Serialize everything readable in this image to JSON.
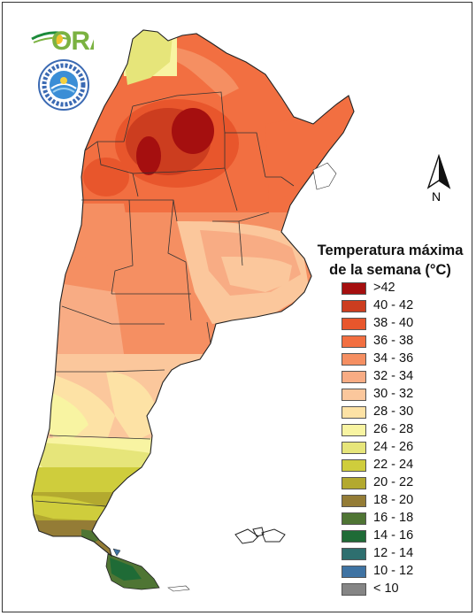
{
  "logo": {
    "text": "ORA",
    "name": "ORA logo"
  },
  "seal": {
    "name": "Servicio Meteorológico Nacional seal"
  },
  "north_arrow": {
    "letter": "N"
  },
  "legend": {
    "title_line1": "Temperatura máxima",
    "title_line2": "de la semana (°C)",
    "items": [
      {
        "label": ">42",
        "color": "#a50f0f"
      },
      {
        "label": "40 - 42",
        "color": "#cc3d1f"
      },
      {
        "label": "38 - 40",
        "color": "#e8562c"
      },
      {
        "label": "36 - 38",
        "color": "#f26f41"
      },
      {
        "label": "34 - 36",
        "color": "#f58f62"
      },
      {
        "label": "32 - 34",
        "color": "#f8ac84"
      },
      {
        "label": "30 - 32",
        "color": "#fbc79c"
      },
      {
        "label": "28 - 30",
        "color": "#fde2a5"
      },
      {
        "label": "26 - 28",
        "color": "#f8f4a2"
      },
      {
        "label": "24 - 26",
        "color": "#e6e57a"
      },
      {
        "label": "22 - 24",
        "color": "#cfcd3c"
      },
      {
        "label": "20 - 22",
        "color": "#b3a92f"
      },
      {
        "label": "18 - 20",
        "color": "#947c36"
      },
      {
        "label": "16 - 18",
        "color": "#4f7534"
      },
      {
        "label": "14 - 16",
        "color": "#1f6b36"
      },
      {
        "label": "12 - 14",
        "color": "#2e6f6f"
      },
      {
        "label": "10 - 12",
        "color": "#3f73a3"
      },
      {
        "label": "< 10",
        "color": "#858585"
      }
    ]
  }
}
